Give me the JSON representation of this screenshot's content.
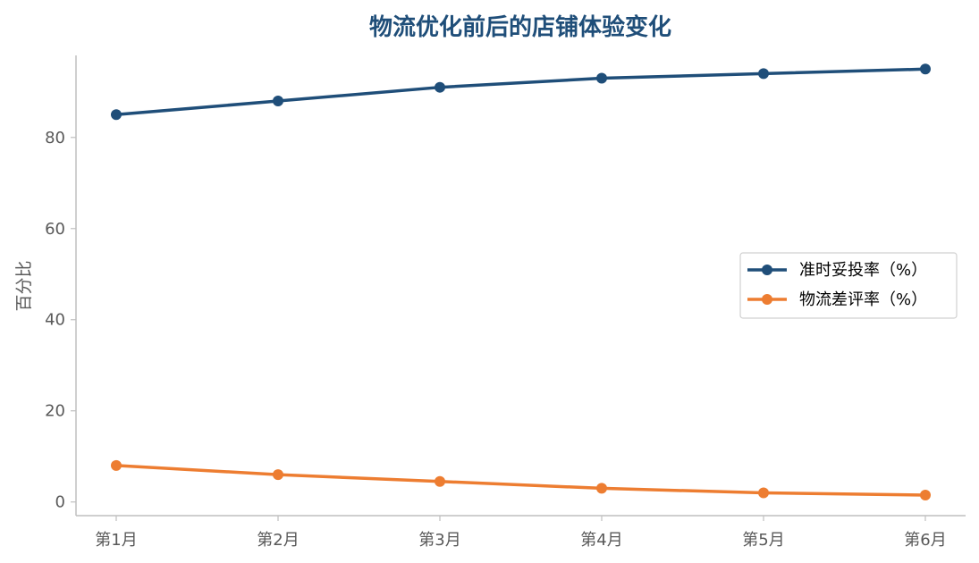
{
  "chart_data": {
    "type": "line",
    "title": "物流优化前后的店铺体验变化",
    "xlabel": "",
    "ylabel": "百分比",
    "categories": [
      "第1月",
      "第2月",
      "第3月",
      "第4月",
      "第5月",
      "第6月"
    ],
    "y_ticks": [
      0,
      20,
      40,
      60,
      80
    ],
    "ylim": [
      -3,
      98
    ],
    "grid": false,
    "legend_position": "center-right",
    "series": [
      {
        "name": "准时妥投率（%）",
        "color": "#1f4e79",
        "values": [
          85,
          88,
          91,
          93,
          94,
          95
        ]
      },
      {
        "name": "物流差评率（%）",
        "color": "#ed7d31",
        "values": [
          8,
          6,
          4.5,
          3,
          2,
          1.5
        ]
      }
    ]
  },
  "colors": {
    "title": "#1f4e79",
    "axis": "#bfbfbf",
    "tick_text": "#595959"
  }
}
